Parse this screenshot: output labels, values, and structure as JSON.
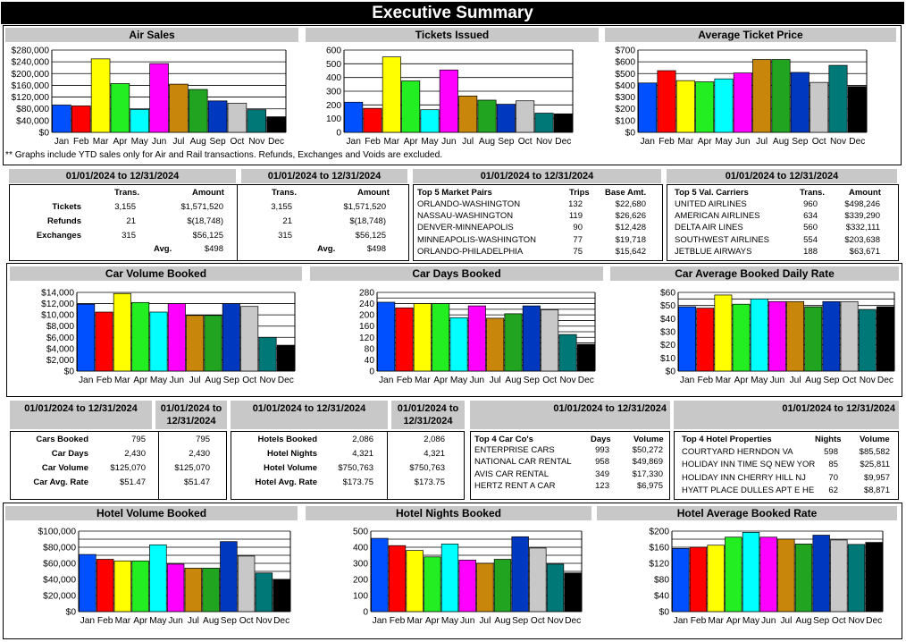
{
  "title": "Executive Summary",
  "months": [
    "Jan",
    "Feb",
    "Mar",
    "Apr",
    "May",
    "Jun",
    "Jul",
    "Aug",
    "Sep",
    "Oct",
    "Nov",
    "Dec"
  ],
  "colors": [
    "#0050ff",
    "#ff0000",
    "#ffff00",
    "#22ee22",
    "#00ffff",
    "#ff00ff",
    "#c8860a",
    "#21a521",
    "#0038c0",
    "#c8c8c8",
    "#007878",
    "#000000"
  ],
  "note": "** Graphs include YTD sales only for Air and Rail transactions.  Refunds, Exchanges and Voids are excluded.",
  "chart_data": [
    {
      "id": "air_sales",
      "type": "bar",
      "title": "Air Sales",
      "categories": [
        "Jan",
        "Feb",
        "Mar",
        "Apr",
        "May",
        "Jun",
        "Jul",
        "Aug",
        "Sep",
        "Oct",
        "Nov",
        "Dec"
      ],
      "values": [
        93000,
        90000,
        250000,
        166000,
        78000,
        234000,
        164000,
        146000,
        107000,
        99000,
        77000,
        53000
      ],
      "ylim": [
        0,
        280000
      ],
      "ticks": [
        "$0",
        "$40,000",
        "$80,000",
        "$120,000",
        "$160,000",
        "$200,000",
        "$240,000",
        "$280,000"
      ],
      "tickvals": [
        0,
        40000,
        80000,
        120000,
        160000,
        200000,
        240000,
        280000
      ],
      "grid": [
        0,
        40000,
        80000,
        120000,
        160000,
        200000,
        240000,
        280000
      ]
    },
    {
      "id": "tickets_issued",
      "type": "bar",
      "title": "Tickets Issued",
      "categories": [
        "Jan",
        "Feb",
        "Mar",
        "Apr",
        "May",
        "Jun",
        "Jul",
        "Aug",
        "Sep",
        "Oct",
        "Nov",
        "Dec"
      ],
      "values": [
        220,
        175,
        550,
        375,
        165,
        455,
        265,
        235,
        205,
        230,
        140,
        135
      ],
      "ylim": [
        0,
        600
      ],
      "ticks": [
        "0",
        "100",
        "200",
        "300",
        "400",
        "500",
        "600"
      ],
      "tickvals": [
        0,
        100,
        200,
        300,
        400,
        500,
        600
      ],
      "grid": [
        0,
        100,
        200,
        300,
        400,
        500,
        600
      ]
    },
    {
      "id": "avg_ticket_price",
      "type": "bar",
      "title": "Average Ticket Price",
      "categories": [
        "Jan",
        "Feb",
        "Mar",
        "Apr",
        "May",
        "Jun",
        "Jul",
        "Aug",
        "Sep",
        "Oct",
        "Nov",
        "Dec"
      ],
      "values": [
        420,
        525,
        440,
        430,
        455,
        505,
        620,
        620,
        510,
        425,
        570,
        390
      ],
      "ylim": [
        0,
        700
      ],
      "ticks": [
        "$0",
        "$100",
        "$200",
        "$300",
        "$400",
        "$500",
        "$600",
        "$700"
      ],
      "tickvals": [
        0,
        100,
        200,
        300,
        400,
        500,
        600,
        700
      ],
      "grid": [
        0,
        100,
        200,
        300,
        400,
        500,
        600,
        700
      ]
    },
    {
      "id": "car_volume",
      "type": "bar",
      "title": "Car Volume Booked",
      "categories": [
        "Jan",
        "Feb",
        "Mar",
        "Apr",
        "May",
        "Jun",
        "Jul",
        "Aug",
        "Sep",
        "Oct",
        "Nov",
        "Dec"
      ],
      "values": [
        11900,
        10500,
        13800,
        12200,
        10500,
        12000,
        9900,
        9900,
        12000,
        11500,
        6000,
        4600
      ],
      "ylim": [
        0,
        14000
      ],
      "ticks": [
        "$0",
        "$2,000",
        "$4,000",
        "$6,000",
        "$8,000",
        "$10,000",
        "$12,000",
        "$14,000"
      ],
      "tickvals": [
        0,
        2000,
        4000,
        6000,
        8000,
        10000,
        12000,
        14000
      ],
      "grid": [
        0,
        2000,
        4000,
        6000,
        8000,
        10000,
        12000,
        14000
      ]
    },
    {
      "id": "car_days",
      "type": "bar",
      "title": "Car Days Booked",
      "categories": [
        "Jan",
        "Feb",
        "Mar",
        "Apr",
        "May",
        "Jun",
        "Jul",
        "Aug",
        "Sep",
        "Oct",
        "Nov",
        "Dec"
      ],
      "values": [
        245,
        225,
        240,
        240,
        190,
        232,
        188,
        204,
        232,
        218,
        130,
        95
      ],
      "ylim": [
        0,
        280
      ],
      "ticks": [
        "0",
        "40",
        "80",
        "120",
        "160",
        "200",
        "240",
        "280"
      ],
      "tickvals": [
        0,
        40,
        80,
        120,
        160,
        200,
        240,
        280
      ],
      "grid": [
        0,
        20,
        40,
        60,
        80,
        100,
        120,
        140,
        160,
        180,
        200,
        220,
        240,
        260,
        280
      ]
    },
    {
      "id": "car_avg_rate",
      "type": "bar",
      "title": "Car Average Booked Daily Rate",
      "categories": [
        "Jan",
        "Feb",
        "Mar",
        "Apr",
        "May",
        "Jun",
        "Jul",
        "Aug",
        "Sep",
        "Oct",
        "Nov",
        "Dec"
      ],
      "values": [
        49,
        48,
        58,
        51,
        55,
        53,
        53,
        49,
        53,
        53,
        47,
        49
      ],
      "ylim": [
        0,
        60
      ],
      "ticks": [
        "$0",
        "$10",
        "$20",
        "$30",
        "$40",
        "$50",
        "$60"
      ],
      "tickvals": [
        0,
        10,
        20,
        30,
        40,
        50,
        60
      ],
      "grid": [
        0,
        5,
        10,
        15,
        20,
        25,
        30,
        35,
        40,
        45,
        50,
        55,
        60
      ]
    },
    {
      "id": "hotel_volume",
      "type": "bar",
      "title": "Hotel Volume Booked",
      "categories": [
        "Jan",
        "Feb",
        "Mar",
        "Apr",
        "May",
        "Jun",
        "Jul",
        "Aug",
        "Sep",
        "Oct",
        "Nov",
        "Dec"
      ],
      "values": [
        71000,
        65000,
        63000,
        63000,
        83000,
        59000,
        54000,
        54000,
        87000,
        69000,
        48000,
        40000
      ],
      "ylim": [
        0,
        100000
      ],
      "ticks": [
        "$0",
        "$20,000",
        "$40,000",
        "$60,000",
        "$80,000",
        "$100,000"
      ],
      "tickvals": [
        0,
        20000,
        40000,
        60000,
        80000,
        100000
      ],
      "grid": [
        0,
        10000,
        20000,
        30000,
        40000,
        50000,
        60000,
        70000,
        80000,
        90000,
        100000
      ]
    },
    {
      "id": "hotel_nights",
      "type": "bar",
      "title": "Hotel Nights Booked",
      "categories": [
        "Jan",
        "Feb",
        "Mar",
        "Apr",
        "May",
        "Jun",
        "Jul",
        "Aug",
        "Sep",
        "Oct",
        "Nov",
        "Dec"
      ],
      "values": [
        455,
        410,
        380,
        340,
        420,
        320,
        300,
        325,
        465,
        395,
        295,
        240
      ],
      "ylim": [
        0,
        500
      ],
      "ticks": [
        "0",
        "100",
        "200",
        "300",
        "400",
        "500"
      ],
      "tickvals": [
        0,
        100,
        200,
        300,
        400,
        500
      ],
      "grid": [
        0,
        50,
        100,
        150,
        200,
        250,
        300,
        350,
        400,
        450,
        500
      ]
    },
    {
      "id": "hotel_avg_rate",
      "type": "bar",
      "title": "Hotel Average Booked Rate",
      "categories": [
        "Jan",
        "Feb",
        "Mar",
        "Apr",
        "May",
        "Jun",
        "Jul",
        "Aug",
        "Sep",
        "Oct",
        "Nov",
        "Dec"
      ],
      "values": [
        157,
        160,
        165,
        185,
        197,
        185,
        180,
        168,
        190,
        178,
        167,
        172
      ],
      "ylim": [
        0,
        200
      ],
      "ticks": [
        "$0",
        "$40",
        "$80",
        "$120",
        "$160",
        "$200"
      ],
      "tickvals": [
        0,
        40,
        80,
        120,
        160,
        200
      ],
      "grid": [
        0,
        20,
        40,
        60,
        80,
        100,
        120,
        140,
        160,
        180,
        200
      ]
    }
  ],
  "air": {
    "date1": "01/01/2024 to 12/31/2024",
    "date2": "01/01/2024 to 12/31/2024",
    "date3": "01/01/2024 to 12/31/2024",
    "date4": "01/01/2024 to 12/31/2024",
    "col_trans": "Trans.",
    "col_amount": "Amount",
    "rows": [
      {
        "label": "Tickets",
        "trans": "3,155",
        "amount": "$1,571,520"
      },
      {
        "label": "Refunds",
        "trans": "21",
        "amount": "$(18,748)"
      },
      {
        "label": "Exchanges",
        "trans": "315",
        "amount": "$56,125"
      }
    ],
    "avg_label": "Avg.",
    "avg_value": "$498",
    "pairs": {
      "h1": "Top 5 Market Pairs",
      "h2": "Trips",
      "h3": "Base Amt.",
      "rows": [
        [
          "ORLANDO-WASHINGTON",
          "132",
          "$22,680"
        ],
        [
          "NASSAU-WASHINGTON",
          "119",
          "$26,626"
        ],
        [
          "DENVER-MINNEAPOLIS",
          "90",
          "$12,428"
        ],
        [
          "MINNEAPOLIS-WASHINGTON",
          "77",
          "$19,718"
        ],
        [
          "ORLANDO-PHILADELPHIA",
          "75",
          "$15,642"
        ]
      ]
    },
    "carriers": {
      "h1": "Top 5 Val. Carriers",
      "h2": "Trans.",
      "h3": "Amount",
      "rows": [
        [
          "UNITED AIRLINES",
          "960",
          "$498,246"
        ],
        [
          "AMERICAN AIRLINES",
          "634",
          "$339,290"
        ],
        [
          "DELTA AIR LINES",
          "560",
          "$332,111"
        ],
        [
          "SOUTHWEST AIRLINES",
          "554",
          "$203,638"
        ],
        [
          "JETBLUE AIRWAYS",
          "188",
          "$63,671"
        ]
      ]
    }
  },
  "car": {
    "date1": "01/01/2024 to 12/31/2024",
    "date2": "01/01/2024 to 12/31/2024",
    "rows": [
      {
        "label": "Cars Booked",
        "v": "795"
      },
      {
        "label": "Car Days",
        "v": "2,430"
      },
      {
        "label": "Car Volume",
        "v": "$125,070"
      },
      {
        "label": "Car Avg. Rate",
        "v": "$51.47"
      }
    ],
    "date5": "01/01/2024 to 12/31/2024",
    "top": {
      "h1": "Top 4 Car Co's",
      "h2": "Days",
      "h3": "Volume",
      "rows": [
        [
          "ENTERPRISE CARS",
          "993",
          "$50,272"
        ],
        [
          "NATIONAL CAR RENTAL",
          "958",
          "$49,869"
        ],
        [
          "AVIS CAR RENTAL",
          "349",
          "$17,330"
        ],
        [
          "HERTZ RENT A CAR",
          "123",
          "$6,975"
        ]
      ]
    }
  },
  "hotel": {
    "date1": "01/01/2024 to 12/31/2024",
    "date2": "01/01/2024 to 12/31/2024",
    "rows": [
      {
        "label": "Hotels Booked",
        "v": "2,086"
      },
      {
        "label": "Hotel Nights",
        "v": "4,321"
      },
      {
        "label": "Hotel Volume",
        "v": "$750,763"
      },
      {
        "label": "Hotel Avg. Rate",
        "v": "$173.75"
      }
    ],
    "date6": "01/01/2024 to 12/31/2024",
    "top": {
      "h1": "Top 4 Hotel Properties",
      "h2": "Nights",
      "h3": "Volume",
      "rows": [
        [
          "COURTYARD HERNDON VA",
          "598",
          "$85,582"
        ],
        [
          "HOLIDAY INN TIME SQ NEW YOR",
          "85",
          "$25,811"
        ],
        [
          "HOLIDAY INN CHERRY HILL NJ",
          "70",
          "$9,957"
        ],
        [
          "HYATT PLACE DULLES APT E HE",
          "62",
          "$8,871"
        ]
      ]
    }
  }
}
